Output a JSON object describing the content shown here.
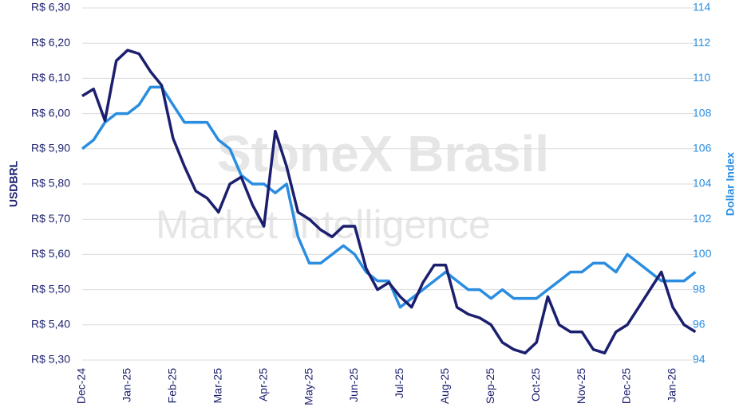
{
  "chart_data": {
    "type": "line",
    "watermark": [
      "StoneX Brasil",
      "Market Intelligence"
    ],
    "y_label": "USDBRL",
    "y2_label": "Dollar Index",
    "categories": [
      "Dec-24",
      null,
      null,
      null,
      "Jan-25",
      null,
      null,
      null,
      "Feb-25",
      null,
      null,
      null,
      "Mar-25",
      null,
      null,
      null,
      "Apr-25",
      null,
      null,
      null,
      "May-25",
      null,
      null,
      null,
      "Jun-25",
      null,
      null,
      null,
      "Jul-25",
      null,
      null,
      null,
      "Aug-25",
      null,
      null,
      null,
      "Sep-25",
      null,
      null,
      null,
      "Oct-25",
      null,
      null,
      null,
      "Nov-25",
      null,
      null,
      null,
      "Dec-25",
      null,
      null,
      null,
      "Jan-26",
      null,
      null
    ],
    "series": [
      {
        "name": "USDBRL",
        "color": "#1b1f6e",
        "values": [
          6.05,
          6.07,
          5.98,
          6.15,
          6.18,
          6.17,
          6.12,
          6.08,
          5.93,
          5.85,
          5.78,
          5.76,
          5.72,
          5.8,
          5.82,
          5.74,
          5.68,
          5.95,
          5.85,
          5.72,
          5.7,
          5.67,
          5.65,
          5.68,
          5.68,
          5.56,
          5.5,
          5.52,
          5.48,
          5.45,
          5.52,
          5.57,
          5.57,
          5.45,
          5.43,
          5.42,
          5.4,
          5.35,
          5.33,
          5.32,
          5.35,
          5.48,
          5.4,
          5.38,
          5.38,
          5.33,
          5.32,
          5.38,
          5.4,
          5.45,
          5.5,
          5.55,
          5.45,
          5.4,
          5.38
        ]
      },
      {
        "name": "Dollar Index",
        "color": "#2a8de0",
        "axis": "y2",
        "values": [
          106,
          106.5,
          107.5,
          108,
          108,
          108.5,
          109.5,
          109.5,
          108.5,
          107.5,
          107.5,
          107.5,
          106.5,
          106,
          104.5,
          104,
          104,
          103.5,
          104,
          101,
          99.5,
          99.5,
          100,
          100.5,
          100,
          99,
          98.5,
          98.5,
          97,
          97.5,
          98,
          98.5,
          99,
          98.5,
          98,
          98,
          97.5,
          98,
          97.5,
          97.5,
          97.5,
          98,
          98.5,
          99,
          99,
          99.5,
          99.5,
          99,
          100,
          99.5,
          99,
          98.5,
          98.5,
          98.5,
          99
        ]
      }
    ],
    "ylim": [
      5.3,
      6.3
    ],
    "yticks": [
      {
        "value": 5.3,
        "label": "R$ 5,30"
      },
      {
        "value": 5.4,
        "label": "R$ 5,40"
      },
      {
        "value": 5.5,
        "label": "R$ 5,50"
      },
      {
        "value": 5.6,
        "label": "R$ 5,60"
      },
      {
        "value": 5.7,
        "label": "R$ 5,70"
      },
      {
        "value": 5.8,
        "label": "R$ 5,80"
      },
      {
        "value": 5.9,
        "label": "R$ 5,90"
      },
      {
        "value": 6.0,
        "label": "R$ 6,00"
      },
      {
        "value": 6.1,
        "label": "R$ 6,10"
      },
      {
        "value": 6.2,
        "label": "R$ 6,20"
      },
      {
        "value": 6.3,
        "label": "R$ 6,30"
      }
    ],
    "y2lim": [
      94,
      114
    ],
    "y2ticks": [
      94,
      96,
      98,
      100,
      102,
      104,
      106,
      108,
      110,
      112,
      114
    ],
    "grid": true
  }
}
